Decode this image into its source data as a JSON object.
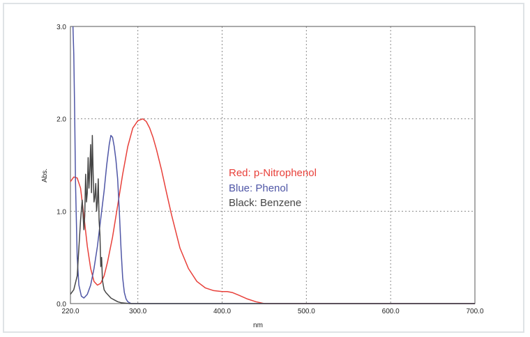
{
  "chart_data": {
    "type": "line",
    "xlabel": "nm",
    "ylabel": "Abs.",
    "xlim": [
      220.0,
      700.0
    ],
    "ylim": [
      0.0,
      3.0
    ],
    "xticks": [
      "220.0",
      "300.0",
      "400.0",
      "500.0",
      "600.0",
      "700.0"
    ],
    "yticks": [
      "0.0",
      "1.0",
      "2.0",
      "3.0"
    ],
    "grid": true,
    "legend_position": "center",
    "series": [
      {
        "name": "Red: p-Nitrophenol",
        "color": "#e8403a",
        "x": [
          220,
          224,
          228,
          232,
          236,
          240,
          244,
          248,
          252,
          256,
          260,
          264,
          270,
          276,
          282,
          288,
          294,
          300,
          306,
          310,
          314,
          318,
          322,
          328,
          334,
          340,
          350,
          360,
          370,
          380,
          390,
          400,
          406,
          412,
          420,
          430,
          440,
          450,
          460,
          470,
          500,
          550,
          600,
          650,
          700
        ],
        "y": [
          1.32,
          1.37,
          1.36,
          1.25,
          0.95,
          0.62,
          0.38,
          0.24,
          0.2,
          0.22,
          0.3,
          0.45,
          0.72,
          1.06,
          1.4,
          1.7,
          1.9,
          1.98,
          2.0,
          1.97,
          1.9,
          1.8,
          1.67,
          1.45,
          1.2,
          0.96,
          0.6,
          0.38,
          0.24,
          0.17,
          0.14,
          0.13,
          0.13,
          0.12,
          0.09,
          0.05,
          0.02,
          0.0,
          0.0,
          0.0,
          0.0,
          0.0,
          0.0,
          0.0,
          0.0
        ]
      },
      {
        "name": "Blue: Phenol",
        "color": "#4f56a6",
        "x": [
          223,
          224,
          225,
          226,
          228,
          230,
          233,
          236,
          240,
          244,
          248,
          252,
          256,
          260,
          263,
          266,
          268,
          270,
          272,
          274,
          276,
          278,
          280,
          282,
          284,
          286,
          288,
          292,
          300,
          320,
          400,
          500,
          600,
          700
        ],
        "y": [
          3.0,
          2.7,
          2.1,
          1.3,
          0.5,
          0.2,
          0.08,
          0.06,
          0.1,
          0.2,
          0.38,
          0.62,
          0.92,
          1.22,
          1.5,
          1.72,
          1.82,
          1.8,
          1.7,
          1.55,
          1.35,
          1.0,
          0.6,
          0.28,
          0.12,
          0.05,
          0.02,
          0.0,
          0.0,
          0.0,
          0.0,
          0.0,
          0.0,
          0.0
        ]
      },
      {
        "name": "Black: Benzene",
        "color": "#454545",
        "x": [
          220,
          224,
          228,
          230,
          232,
          234,
          236,
          237,
          238,
          239,
          240,
          241,
          242,
          243,
          244,
          245,
          246,
          247,
          248,
          249,
          250,
          251,
          252,
          253,
          254,
          255,
          256,
          257,
          258,
          259,
          260,
          262,
          264,
          266,
          268,
          270,
          272,
          276,
          280,
          290,
          300,
          700
        ],
        "y": [
          0.1,
          0.15,
          0.3,
          0.6,
          0.9,
          1.12,
          0.8,
          0.95,
          1.4,
          1.1,
          1.2,
          1.58,
          1.25,
          1.45,
          1.72,
          1.2,
          1.82,
          1.4,
          1.1,
          1.15,
          1.3,
          1.0,
          1.1,
          1.35,
          0.9,
          0.75,
          0.4,
          0.5,
          0.25,
          0.2,
          0.15,
          0.12,
          0.1,
          0.08,
          0.06,
          0.05,
          0.04,
          0.02,
          0.01,
          0.0,
          0.0,
          0.0
        ]
      }
    ]
  }
}
